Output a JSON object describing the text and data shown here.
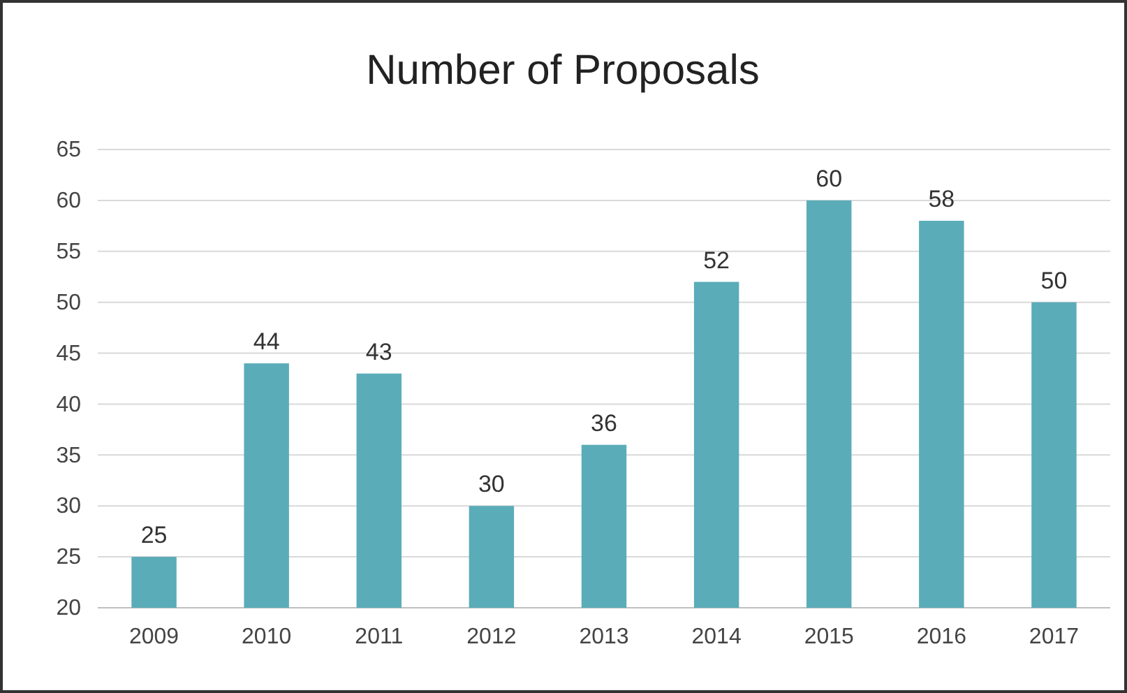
{
  "chart_data": {
    "type": "bar",
    "title": "Number of Proposals",
    "categories": [
      "2009",
      "2010",
      "2011",
      "2012",
      "2013",
      "2014",
      "2015",
      "2016",
      "2017"
    ],
    "values": [
      25,
      44,
      43,
      30,
      36,
      52,
      60,
      58,
      50
    ],
    "color": "#5aacb8",
    "ylim": [
      20,
      65
    ],
    "yticks": [
      20,
      25,
      30,
      35,
      40,
      45,
      50,
      55,
      60,
      65
    ],
    "grid": "y",
    "data_labels": true
  }
}
